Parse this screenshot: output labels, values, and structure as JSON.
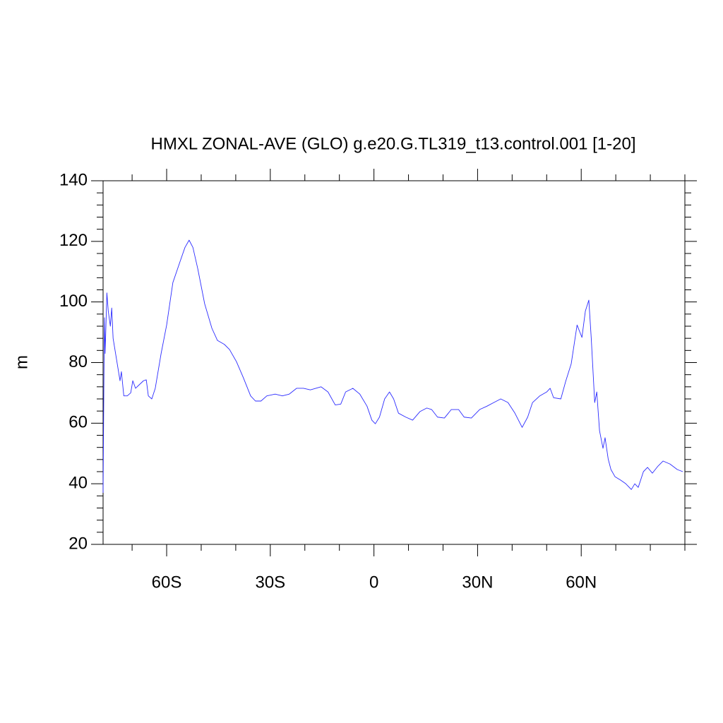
{
  "chart_data": {
    "type": "line",
    "title": "HMXL ZONAL-AVE (GLO) g.e20.G.TL319_t13.control.001 [1-20]",
    "ylabel": "m",
    "xlim": [
      -78.4,
      90
    ],
    "ylim": [
      20,
      140
    ],
    "xticks": [
      {
        "value": -60,
        "label": "60S"
      },
      {
        "value": -30,
        "label": "30S"
      },
      0,
      {
        "value": 30,
        "label": "30N"
      },
      {
        "value": 60,
        "label": "60N"
      }
    ],
    "xminorticks": [
      -70,
      -50,
      -40,
      -20,
      -10,
      10,
      20,
      40,
      50,
      70,
      80,
      90
    ],
    "yticks": [
      20,
      40,
      60,
      80,
      100,
      120,
      140
    ],
    "yminorticks": [
      24,
      28,
      32,
      36,
      44,
      48,
      52,
      56,
      64,
      68,
      72,
      76,
      84,
      88,
      92,
      96,
      104,
      108,
      112,
      116,
      124,
      128,
      132,
      136
    ],
    "series": [
      {
        "color": "#2b2bff",
        "x": [
          -78.4,
          -78.2,
          -78.0,
          -77.8,
          -77.3,
          -76.9,
          -76.3,
          -75.9,
          -75.5,
          -74.5,
          -73.5,
          -73.1,
          -72.4,
          -71.4,
          -70.4,
          -69.8,
          -69.0,
          -68.0,
          -66.7,
          -65.9,
          -65.3,
          -64.3,
          -63.3,
          -61.6,
          -60.0,
          -58.2,
          -56.1,
          -54.7,
          -53.5,
          -52.4,
          -51.0,
          -49.0,
          -46.9,
          -45.3,
          -43.3,
          -41.8,
          -39.8,
          -37.8,
          -35.7,
          -34.3,
          -32.7,
          -31.0,
          -28.6,
          -26.5,
          -24.5,
          -22.4,
          -20.4,
          -18.4,
          -15.3,
          -13.3,
          -11.2,
          -9.6,
          -8.2,
          -6.1,
          -4.1,
          -2.0,
          -0.6,
          0.4,
          1.6,
          3.1,
          4.5,
          5.7,
          7.1,
          9.2,
          11.2,
          13.3,
          15.3,
          16.7,
          18.4,
          20.4,
          22.4,
          24.5,
          26.1,
          28.2,
          30.6,
          32.7,
          34.7,
          36.7,
          38.8,
          40.8,
          42.9,
          44.5,
          45.9,
          48.0,
          50.0,
          51.0,
          52.0,
          54.1,
          55.5,
          57.1,
          58.8,
          60.2,
          61.2,
          62.2,
          62.9,
          63.9,
          64.5,
          65.3,
          66.3,
          66.9,
          67.8,
          68.6,
          69.8,
          71.4,
          72.9,
          74.5,
          75.5,
          76.5,
          78.0,
          79.2,
          80.6,
          82.2,
          83.7,
          85.7,
          87.8,
          89.4
        ],
        "values": [
          37,
          69,
          94.8,
          83,
          103,
          97,
          92,
          98,
          88,
          81,
          74,
          77,
          69,
          69,
          70,
          74,
          71.5,
          72.6,
          74,
          74.3,
          69,
          68,
          71.5,
          83,
          92.4,
          106.4,
          113.4,
          118,
          120.4,
          118,
          111,
          99.4,
          91.3,
          87.3,
          86,
          84.3,
          80.3,
          75,
          69,
          67.3,
          67.3,
          69,
          69.6,
          69,
          69.6,
          71.5,
          71.5,
          71,
          72,
          70.3,
          66,
          66.3,
          70.3,
          71.5,
          69.6,
          65.6,
          61,
          59.8,
          62,
          68,
          70.3,
          68,
          63.3,
          62,
          61,
          63.8,
          65,
          64.5,
          62,
          61.7,
          64.5,
          64.5,
          62,
          61.7,
          64.5,
          65.6,
          66.8,
          68,
          66.8,
          63.3,
          58.6,
          62,
          66.8,
          69,
          70.3,
          71.5,
          68.4,
          68,
          73.8,
          79.6,
          92.4,
          88.3,
          97,
          100.6,
          88,
          66.8,
          70.3,
          57.5,
          51.7,
          55.2,
          48.2,
          44.7,
          42.3,
          41.2,
          40,
          38.1,
          40,
          38.8,
          44,
          45.4,
          43.5,
          45.8,
          47.5,
          46.5,
          44.7,
          44
        ]
      }
    ]
  }
}
